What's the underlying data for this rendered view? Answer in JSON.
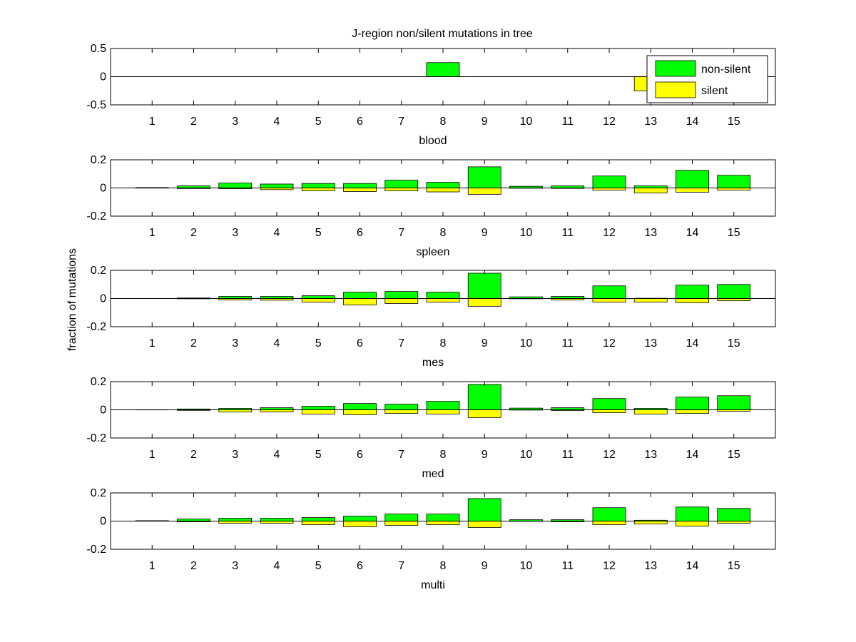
{
  "colors": {
    "non_silent": "#00ff00",
    "silent": "#ffff00",
    "axis": "#000000"
  },
  "chart_data": {
    "type": "bar",
    "title": "J-region non/silent mutations in tree",
    "ylabel": "fraction of mutations",
    "categories": [
      "1",
      "2",
      "3",
      "4",
      "5",
      "6",
      "7",
      "8",
      "9",
      "10",
      "11",
      "12",
      "13",
      "14",
      "15"
    ],
    "legend": {
      "placement": "top-right",
      "entries": [
        "non-silent",
        "silent"
      ]
    },
    "grid": false,
    "panels": [
      {
        "xlabel": "blood",
        "ylim": [
          -0.5,
          0.5
        ],
        "yticks": [
          "0.5",
          "0",
          "-0.5"
        ],
        "series": [
          {
            "name": "non-silent",
            "values": [
              0,
              0,
              0,
              0,
              0,
              0,
              0,
              0.25,
              0,
              0,
              0,
              0,
              0,
              0,
              0
            ]
          },
          {
            "name": "silent",
            "values": [
              0,
              0,
              0,
              0,
              0,
              0,
              0,
              0,
              0,
              0,
              0,
              0,
              -0.25,
              0,
              0
            ]
          }
        ]
      },
      {
        "xlabel": "spleen",
        "ylim": [
          -0.2,
          0.2
        ],
        "yticks": [
          "0.2",
          "0",
          "-0.2"
        ],
        "series": [
          {
            "name": "non-silent",
            "values": [
              0.003,
              0.015,
              0.035,
              0.028,
              0.032,
              0.032,
              0.055,
              0.04,
              0.15,
              0.012,
              0.015,
              0.085,
              0.015,
              0.125,
              0.09
            ]
          },
          {
            "name": "silent",
            "values": [
              -0.001,
              -0.004,
              -0.005,
              -0.012,
              -0.02,
              -0.025,
              -0.02,
              -0.028,
              -0.045,
              -0.002,
              -0.003,
              -0.015,
              -0.035,
              -0.03,
              -0.015
            ]
          }
        ]
      },
      {
        "xlabel": "mes",
        "ylim": [
          -0.2,
          0.2
        ],
        "yticks": [
          "0.2",
          "0",
          "-0.2"
        ],
        "series": [
          {
            "name": "non-silent",
            "values": [
              0,
              0.004,
              0.015,
              0.015,
              0.02,
              0.045,
              0.05,
              0.045,
              0.18,
              0.012,
              0.015,
              0.09,
              0.002,
              0.095,
              0.1
            ]
          },
          {
            "name": "silent",
            "values": [
              0,
              -0.002,
              -0.01,
              -0.012,
              -0.025,
              -0.045,
              -0.035,
              -0.025,
              -0.055,
              -0.002,
              -0.01,
              -0.025,
              -0.025,
              -0.03,
              -0.015
            ]
          }
        ]
      },
      {
        "xlabel": "med",
        "ylim": [
          -0.2,
          0.2
        ],
        "yticks": [
          "0.2",
          "0",
          "-0.2"
        ],
        "series": [
          {
            "name": "non-silent",
            "values": [
              0.001,
              0.006,
              0.01,
              0.015,
              0.025,
              0.045,
              0.04,
              0.06,
              0.18,
              0.012,
              0.015,
              0.08,
              0.01,
              0.09,
              0.1
            ]
          },
          {
            "name": "silent",
            "values": [
              -0.001,
              -0.004,
              -0.015,
              -0.015,
              -0.03,
              -0.035,
              -0.025,
              -0.03,
              -0.055,
              -0.002,
              -0.005,
              -0.02,
              -0.03,
              -0.025,
              -0.01
            ]
          }
        ]
      },
      {
        "xlabel": "multi",
        "ylim": [
          -0.2,
          0.2
        ],
        "yticks": [
          "0.2",
          "0",
          "-0.2"
        ],
        "series": [
          {
            "name": "non-silent",
            "values": [
              0.003,
              0.015,
              0.02,
              0.02,
              0.025,
              0.035,
              0.05,
              0.05,
              0.16,
              0.01,
              0.01,
              0.095,
              0.006,
              0.1,
              0.09
            ]
          },
          {
            "name": "silent",
            "values": [
              -0.001,
              -0.005,
              -0.015,
              -0.015,
              -0.025,
              -0.04,
              -0.03,
              -0.025,
              -0.045,
              -0.002,
              -0.005,
              -0.025,
              -0.02,
              -0.035,
              -0.015
            ]
          }
        ]
      }
    ]
  }
}
